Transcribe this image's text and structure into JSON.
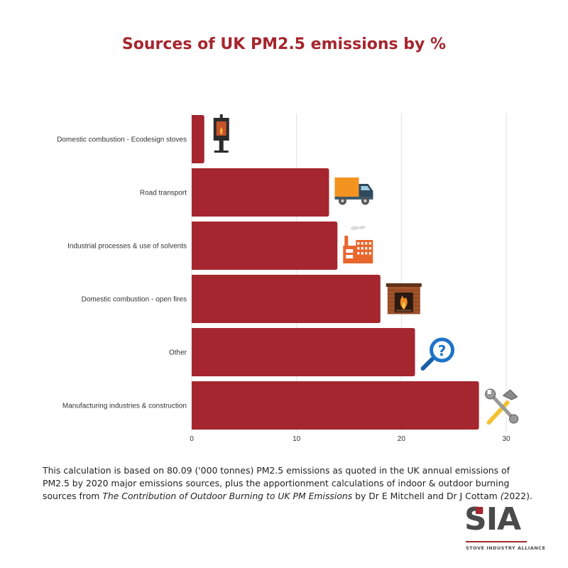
{
  "chart_data": {
    "type": "bar",
    "orientation": "horizontal",
    "title": "Sources of UK PM2.5 emissions by %",
    "categories": [
      "Domestic combustion - Ecodesign stoves",
      "Road transport",
      "Industrial processes & use of solvents",
      "Domestic combustion - open fires",
      "Other",
      "Manufacturing industries & construction"
    ],
    "values": [
      1.2,
      13.1,
      13.9,
      18.0,
      21.3,
      27.4
    ],
    "icons": [
      "stove-icon",
      "truck-icon",
      "factory-icon",
      "fireplace-icon",
      "magnifier-question-icon",
      "tools-icon"
    ],
    "xlim": [
      0,
      30
    ],
    "xticks": [
      "0",
      "10",
      "20",
      "30"
    ],
    "grid": true,
    "bar_color": "#a5262e"
  },
  "footnote": {
    "part1": "This calculation is based on 80.09 ('000 tonnes) PM2.5 emissions as quoted in the UK annual emissions of PM2.5 by 2020 major emissions sources, plus the apportionment calculations of indoor & outdoor burning sources from ",
    "italic1": "The Contribution of Outdoor Burning to UK PM Emissions",
    "part2": " by Dr E Mitchell and Dr J Cottam ",
    "italic2": "(",
    "part3": "2022)."
  },
  "logo": {
    "letters": "SIA",
    "subtitle": "STOVE INDUSTRY ALLIANCE"
  },
  "colors": {
    "accent": "#a5262e",
    "grid": "#e2e2e2",
    "logo_grey": "#4a4a4a"
  }
}
